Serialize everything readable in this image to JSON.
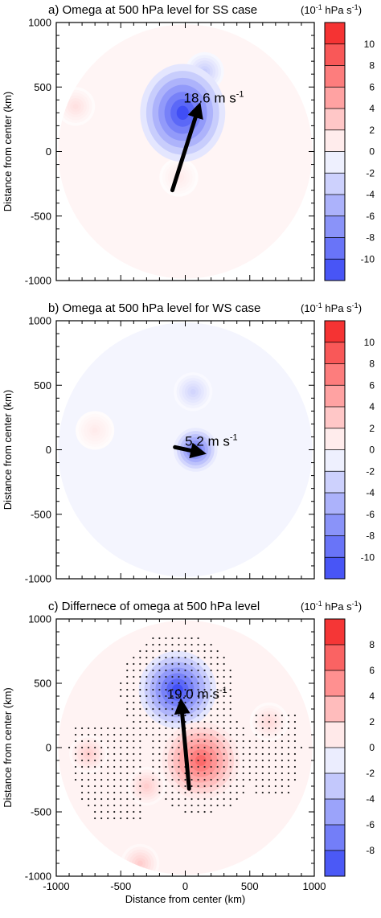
{
  "chart_data": [
    {
      "type": "heatmap",
      "title": "a) Omega at 500 hPa level for SS case",
      "unit_base": "(10",
      "unit_exp": "-1",
      "unit_tail": " hPa s",
      "unit_exp2": "-1",
      "unit_close": ")",
      "ylabel": "Distance from center (km)",
      "xlabel": "",
      "xlim": [
        -1000,
        1000
      ],
      "ylim": [
        -1000,
        1000
      ],
      "xticks": [
        "-1000",
        "-500",
        "0",
        "500",
        "1000"
      ],
      "yticks": [
        "1000",
        "500",
        "0",
        "-500",
        "-1000"
      ],
      "colorbar_ticks": [
        "10",
        "8",
        "6",
        "4",
        "2",
        "0",
        "-2",
        "-4",
        "-6",
        "-8",
        "-10"
      ],
      "colorbar_range": [
        -11,
        11
      ],
      "vector": {
        "from": [
          -100,
          -300
        ],
        "to": [
          100,
          330
        ],
        "label": "18.6 m s",
        "label_exp": "-1"
      },
      "features": [
        {
          "kind": "min",
          "x": -20,
          "y": 300,
          "value": -10.5
        },
        {
          "kind": "weak_min",
          "x": 150,
          "y": 620,
          "value": -3
        },
        {
          "kind": "weak_max",
          "x": -850,
          "y": 350,
          "value": 1.5
        },
        {
          "kind": "weak_max",
          "x": -50,
          "y": -200,
          "value": 1
        }
      ]
    },
    {
      "type": "heatmap",
      "title": "b) Omega at 500 hPa level for WS case",
      "unit_base": "(10",
      "unit_exp": "-1",
      "unit_tail": " hPa s",
      "unit_exp2": "-1",
      "unit_close": ")",
      "ylabel": "Distance from center (km)",
      "xlabel": "",
      "xlim": [
        -1000,
        1000
      ],
      "ylim": [
        -1000,
        1000
      ],
      "xticks": [
        "-1000",
        "-500",
        "0",
        "500",
        "1000"
      ],
      "yticks": [
        "1000",
        "500",
        "0",
        "-500",
        "-1000"
      ],
      "colorbar_ticks": [
        "10",
        "8",
        "6",
        "4",
        "2",
        "0",
        "-2",
        "-4",
        "-6",
        "-8",
        "-10"
      ],
      "colorbar_range": [
        -11,
        11
      ],
      "vector": {
        "from": [
          -80,
          20
        ],
        "to": [
          110,
          -20
        ],
        "label": "5.2 m s",
        "label_exp": "-1"
      },
      "features": [
        {
          "kind": "min",
          "x": 80,
          "y": 0,
          "value": -8.5
        },
        {
          "kind": "weak_min",
          "x": 60,
          "y": 450,
          "value": -2.5
        },
        {
          "kind": "weak_max",
          "x": -700,
          "y": 150,
          "value": 1
        }
      ]
    },
    {
      "type": "heatmap",
      "title": "c) Differnece of omega at 500 hPa level",
      "unit_base": "(10",
      "unit_exp": "-1",
      "unit_tail": " hPa s",
      "unit_exp2": "-1",
      "unit_close": ")",
      "ylabel": "Distance from center (km)",
      "xlabel": "Distance from center (km)",
      "xlim": [
        -1000,
        1000
      ],
      "ylim": [
        -1000,
        1000
      ],
      "xticks": [
        "-1000",
        "-500",
        "0",
        "500",
        "1000"
      ],
      "yticks": [
        "1000",
        "500",
        "0",
        "-500",
        "-1000"
      ],
      "colorbar_ticks": [
        "8",
        "6",
        "4",
        "2",
        "0",
        "-2",
        "-4",
        "-6",
        "-8"
      ],
      "colorbar_range": [
        -9,
        9
      ],
      "vector": {
        "from": [
          30,
          -320
        ],
        "to": [
          -30,
          330
        ],
        "label": "19.0 m s",
        "label_exp": "-1"
      },
      "features": [
        {
          "kind": "min",
          "x": -60,
          "y": 450,
          "value": -8.5
        },
        {
          "kind": "max",
          "x": 120,
          "y": -100,
          "value": 6
        },
        {
          "kind": "weak_max",
          "x": -300,
          "y": -300,
          "value": 2
        },
        {
          "kind": "weak_max",
          "x": -750,
          "y": -50,
          "value": 2
        },
        {
          "kind": "weak_max",
          "x": 650,
          "y": 200,
          "value": 1.5
        },
        {
          "kind": "weak_max",
          "x": -350,
          "y": -900,
          "value": 2
        }
      ],
      "stippling": true
    }
  ]
}
